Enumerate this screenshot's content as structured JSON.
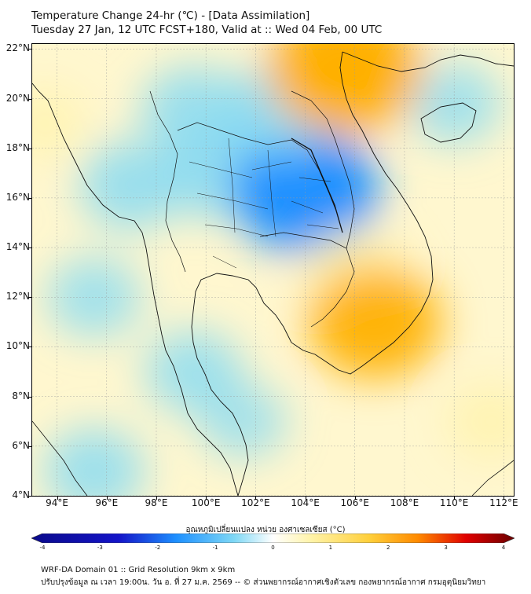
{
  "title": {
    "line1": "Temperature Change 24-hr (℃) - [Data Assimilation]",
    "line2": "Tuesday 27 Jan, 12 UTC FCST+180, Valid at :: Wed 04 Feb, 00 UTC"
  },
  "axes": {
    "lat_labels": [
      "22°N",
      "20°N",
      "18°N",
      "16°N",
      "14°N",
      "12°N",
      "10°N",
      "8°N",
      "6°N",
      "4°N"
    ],
    "lon_labels": [
      "94°E",
      "96°E",
      "98°E",
      "100°E",
      "102°E",
      "104°E",
      "106°E",
      "108°E",
      "110°E",
      "112°E"
    ]
  },
  "field": {
    "units": "°C",
    "range": [
      -4,
      4
    ],
    "blobs": [
      {
        "name": "central-thailand-cooling",
        "lon": 100.5,
        "lat": 17.0,
        "value": -1.3
      },
      {
        "name": "northeast-thailand-cooling",
        "lon": 104.0,
        "lat": 16.3,
        "value": -2.4
      },
      {
        "name": "laos-cooling",
        "lon": 103.0,
        "lat": 19.5,
        "value": -1.4
      },
      {
        "name": "northern-thailand-cooling",
        "lon": 99.5,
        "lat": 19.5,
        "value": -1.2
      },
      {
        "name": "myanmar-cooling",
        "lon": 97.0,
        "lat": 16.5,
        "value": -1.2
      },
      {
        "name": "andaman-cooling",
        "lon": 95.5,
        "lat": 12.0,
        "value": -0.9
      },
      {
        "name": "peninsula-cooling",
        "lon": 99.5,
        "lat": 9.0,
        "value": -1.0
      },
      {
        "name": "gulf-cooling",
        "lon": 101.5,
        "lat": 7.0,
        "value": -0.7
      },
      {
        "name": "south-andaman-cooling",
        "lon": 95.5,
        "lat": 5.0,
        "value": -1.1
      },
      {
        "name": "hainan-cooling",
        "lon": 110.0,
        "lat": 19.8,
        "value": -0.9
      },
      {
        "name": "north-vietnam-warming",
        "lon": 105.6,
        "lat": 21.2,
        "value": 2.6
      },
      {
        "name": "cambodia-warming",
        "lon": 106.0,
        "lat": 13.0,
        "value": 1.2
      },
      {
        "name": "mekong-delta-warming",
        "lon": 106.8,
        "lat": 11.0,
        "value": 2.0
      },
      {
        "name": "south-china-sea-warming",
        "lon": 111.5,
        "lat": 7.0,
        "value": 0.8
      },
      {
        "name": "myanmar-coast-warming",
        "lon": 93.5,
        "lat": 19.0,
        "value": 0.6
      }
    ]
  },
  "colorbar": {
    "title": "อุณหภูมิเปลี่ยนแปลง หน่วย องศาเซลเซียส (°C)",
    "labels": [
      "-4",
      "-3",
      "-2",
      "-1",
      "0",
      "1",
      "2",
      "3",
      "4"
    ]
  },
  "footer": {
    "line1": "WRF-DA Domain 01 :: Grid Resolution 9km x 9km",
    "line2": "ปรับปรุงข้อมูล ณ เวลา 19:00น. วัน อ. ที่ 27 ม.ค. 2569 -- © ส่วนพยากรณ์อากาศเชิงตัวเลข กองพยากรณ์อากาศ กรมอุตุนิยมวิทยา"
  },
  "colors": {
    "cold_extreme": "#0a0a8a",
    "cold_mid": "#1e90ff",
    "cold_light": "#7fd8f5",
    "neutral": "#ffffff",
    "warm_light": "#fff3a8",
    "warm_mid": "#ffb000",
    "warm_extreme": "#7a0000"
  }
}
